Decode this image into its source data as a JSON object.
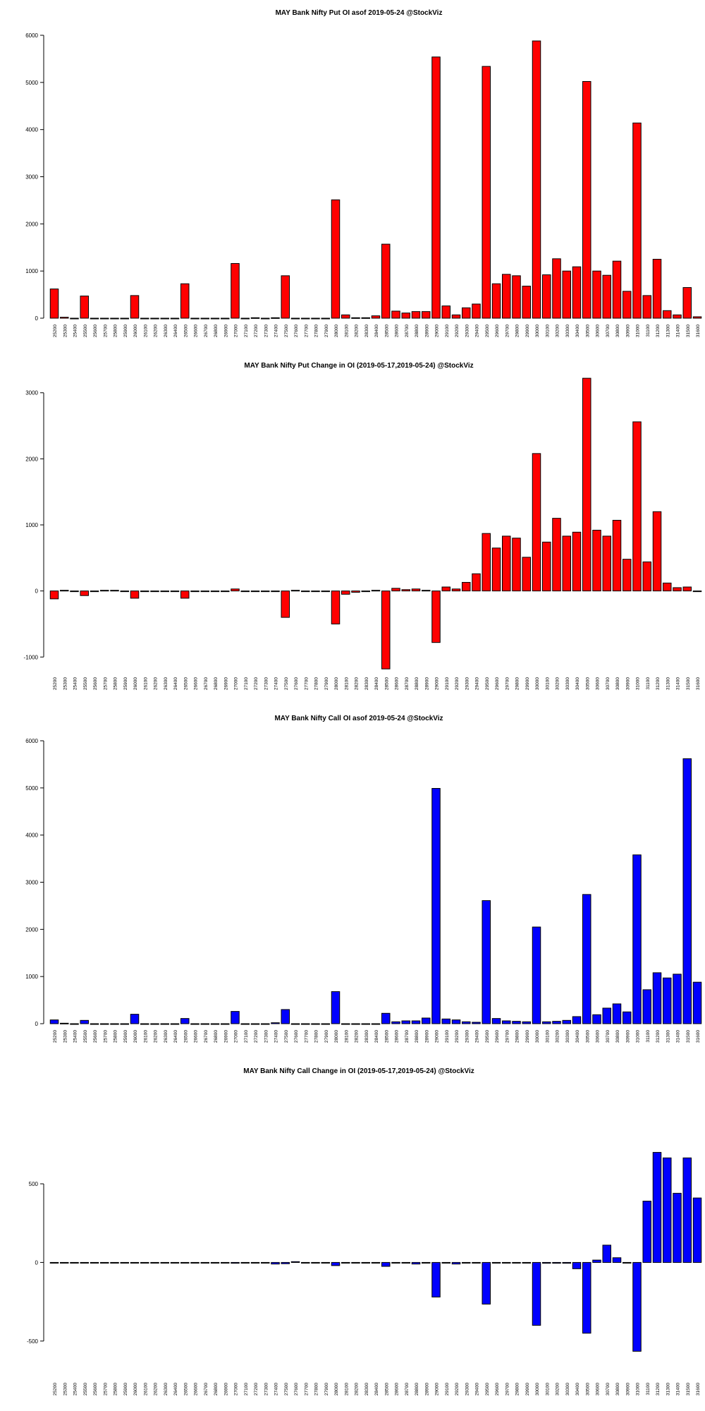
{
  "chart_data": [
    {
      "type": "bar",
      "title": "MAY Bank Nifty Put OI asof 2019-05-24 @StockViz",
      "xlabel": "",
      "ylabel": "",
      "ylim": [
        0,
        6000
      ],
      "yticks": [
        0,
        1000,
        2000,
        3000,
        4000,
        5000,
        6000
      ],
      "bar_color": "#ff0000",
      "categories": [
        "25200",
        "25300",
        "25400",
        "25500",
        "25600",
        "25700",
        "25800",
        "25900",
        "26000",
        "26100",
        "26200",
        "26300",
        "26400",
        "26500",
        "26600",
        "26700",
        "26800",
        "26900",
        "27000",
        "27100",
        "27200",
        "27300",
        "27400",
        "27500",
        "27600",
        "27700",
        "27800",
        "27900",
        "28000",
        "28100",
        "28200",
        "28300",
        "28400",
        "28500",
        "28600",
        "28700",
        "28800",
        "28900",
        "29000",
        "29100",
        "29200",
        "29300",
        "29400",
        "29500",
        "29600",
        "29700",
        "29800",
        "29900",
        "30000",
        "30100",
        "30200",
        "30300",
        "30400",
        "30500",
        "30600",
        "30700",
        "30800",
        "30900",
        "31000",
        "31100",
        "31200",
        "31300",
        "31400",
        "31500",
        "31600"
      ],
      "tick_labels": [
        "25200",
        "25300",
        "25400",
        "25500",
        "25600",
        "25700",
        "25800",
        "25900",
        "26000",
        "26100",
        "26200",
        "26300",
        "26400",
        "26500",
        "26600",
        "26700",
        "26800",
        "26900",
        "27000",
        "27100",
        "27200",
        "27300",
        "27400",
        "27500",
        "27600",
        "27700",
        "27800",
        "27900",
        "28000",
        "28100",
        "28200",
        "28300",
        "28400",
        "28500",
        "28600",
        "28700",
        "28800",
        "28900",
        "29000",
        "29100",
        "29200",
        "29300",
        "29400",
        "29500",
        "29600",
        "29700",
        "29800",
        "29900",
        "30000",
        "30100",
        "30200",
        "30300",
        "30400",
        "30500",
        "30600",
        "30700",
        "30800",
        "30900",
        "31000",
        "31100",
        "31200",
        "31300",
        "31400",
        "31500",
        "31600"
      ],
      "values": [
        620,
        20,
        0,
        470,
        0,
        0,
        0,
        0,
        480,
        0,
        0,
        0,
        0,
        730,
        0,
        0,
        0,
        0,
        1160,
        0,
        10,
        0,
        10,
        900,
        0,
        0,
        0,
        0,
        2510,
        70,
        10,
        10,
        50,
        1570,
        150,
        110,
        140,
        140,
        5540,
        260,
        70,
        220,
        300,
        5340,
        730,
        930,
        900,
        680,
        5880,
        920,
        1260,
        1000,
        1090,
        5020,
        1000,
        910,
        1210,
        570,
        4140,
        480,
        1250,
        160,
        70,
        650,
        30
      ]
    },
    {
      "type": "bar",
      "title": "MAY Bank Nifty Put Change in OI (2019-05-17,2019-05-24) @StockViz",
      "xlabel": "",
      "ylabel": "",
      "ylim": [
        -1200,
        3200
      ],
      "yticks": [
        -1000,
        0,
        1000,
        2000,
        3000
      ],
      "bar_color": "#ff0000",
      "categories": [
        "25200",
        "25300",
        "25400",
        "25500",
        "25600",
        "25700",
        "25800",
        "25900",
        "26000",
        "26100",
        "26200",
        "26300",
        "26400",
        "26500",
        "26600",
        "26700",
        "26800",
        "26900",
        "27000",
        "27100",
        "27200",
        "27300",
        "27400",
        "27500",
        "27600",
        "27700",
        "27800",
        "27900",
        "28000",
        "28100",
        "28200",
        "28300",
        "28400",
        "28500",
        "28600",
        "28700",
        "28800",
        "28900",
        "29000",
        "29100",
        "29200",
        "29300",
        "29400",
        "29500",
        "29600",
        "29700",
        "29800",
        "29900",
        "30000",
        "30100",
        "30200",
        "30300",
        "30400",
        "30500",
        "30600",
        "30700",
        "30800",
        "30900",
        "31000",
        "31100",
        "31200",
        "31300",
        "31400",
        "31500",
        "31600"
      ],
      "tick_labels": [
        "25200",
        "25300",
        "25400",
        "25500",
        "25600",
        "25700",
        "25800",
        "25900",
        "26000",
        "26100",
        "26200",
        "26300",
        "26400",
        "26500",
        "26600",
        "26700",
        "26800",
        "26900",
        "27000",
        "27100",
        "27200",
        "27300",
        "27400",
        "27500",
        "27600",
        "27700",
        "27800",
        "27900",
        "28000",
        "28100",
        "28200",
        "28300",
        "28400",
        "28500",
        "28600",
        "28700",
        "28800",
        "28900",
        "29000",
        "29100",
        "29200",
        "29300",
        "29400",
        "29500",
        "29600",
        "29700",
        "29800",
        "29900",
        "30000",
        "30100",
        "30200",
        "30300",
        "30400",
        "30500",
        "30600",
        "30700",
        "30800",
        "30900",
        "31000",
        "31100",
        "31200",
        "31300",
        "31400",
        "31500",
        "31600"
      ],
      "values": [
        -120,
        10,
        0,
        -70,
        0,
        10,
        10,
        0,
        -110,
        0,
        0,
        0,
        0,
        -110,
        0,
        0,
        0,
        0,
        30,
        0,
        0,
        0,
        0,
        -400,
        10,
        0,
        0,
        0,
        -500,
        -50,
        -20,
        -10,
        10,
        -1180,
        40,
        20,
        30,
        10,
        -780,
        60,
        30,
        130,
        260,
        870,
        650,
        830,
        800,
        510,
        2080,
        740,
        1100,
        830,
        890,
        3220,
        920,
        830,
        1070,
        480,
        2560,
        440,
        1200,
        120,
        50,
        60,
        0
      ]
    },
    {
      "type": "bar",
      "title": "MAY Bank Nifty Call OI asof 2019-05-24 @StockViz",
      "xlabel": "",
      "ylabel": "",
      "ylim": [
        0,
        6000
      ],
      "yticks": [
        0,
        1000,
        2000,
        3000,
        4000,
        5000,
        6000
      ],
      "bar_color": "#0000ff",
      "categories": [
        "25200",
        "25300",
        "25400",
        "25500",
        "25600",
        "25700",
        "25800",
        "25900",
        "26000",
        "26100",
        "26200",
        "26300",
        "26400",
        "26500",
        "26600",
        "26700",
        "26800",
        "26900",
        "27000",
        "27100",
        "27200",
        "27300",
        "27400",
        "27500",
        "27600",
        "27700",
        "27800",
        "27900",
        "28000",
        "28100",
        "28200",
        "28300",
        "28400",
        "28500",
        "28600",
        "28700",
        "28800",
        "28900",
        "29000",
        "29100",
        "29200",
        "29300",
        "29400",
        "29500",
        "29600",
        "29700",
        "29800",
        "29900",
        "30000",
        "30100",
        "30200",
        "30300",
        "30400",
        "30500",
        "30600",
        "30700",
        "30800",
        "30900",
        "31000",
        "31100",
        "31200",
        "31300",
        "31400",
        "31500",
        "31600"
      ],
      "tick_labels": [
        "25200",
        "25300",
        "25400",
        "25500",
        "25600",
        "25700",
        "25800",
        "25900",
        "26000",
        "26100",
        "26200",
        "26300",
        "26400",
        "26500",
        "26600",
        "26700",
        "26800",
        "26900",
        "27000",
        "27100",
        "27200",
        "27300",
        "27400",
        "27500",
        "27600",
        "27700",
        "27800",
        "27900",
        "28000",
        "28100",
        "28200",
        "28300",
        "28400",
        "28500",
        "28600",
        "28700",
        "28800",
        "28900",
        "29000",
        "29100",
        "29200",
        "29300",
        "29400",
        "29500",
        "29600",
        "29700",
        "29800",
        "29900",
        "30000",
        "30100",
        "30200",
        "30300",
        "30400",
        "30500",
        "30600",
        "30700",
        "30800",
        "30900",
        "31000",
        "31100",
        "31200",
        "31300",
        "31400",
        "31500",
        "31600"
      ],
      "values": [
        80,
        10,
        0,
        70,
        0,
        0,
        0,
        0,
        200,
        0,
        0,
        0,
        0,
        110,
        0,
        0,
        0,
        0,
        260,
        0,
        0,
        0,
        20,
        300,
        0,
        0,
        0,
        0,
        680,
        0,
        0,
        0,
        0,
        220,
        40,
        60,
        60,
        120,
        4990,
        100,
        80,
        40,
        30,
        2610,
        110,
        60,
        50,
        40,
        2050,
        40,
        50,
        70,
        150,
        2740,
        190,
        330,
        420,
        250,
        3580,
        720,
        1080,
        970,
        1050,
        5620,
        880
      ]
    },
    {
      "type": "bar",
      "title": "MAY Bank Nifty Call Change in OI (2019-05-17,2019-05-24) @StockViz",
      "xlabel": "",
      "ylabel": "",
      "ylim": [
        -550,
        850
      ],
      "yticks": [
        -500,
        0,
        500
      ],
      "bar_color": "#0000ff",
      "categories": [
        "25200",
        "25300",
        "25400",
        "25500",
        "25600",
        "25700",
        "25800",
        "25900",
        "26000",
        "26100",
        "26200",
        "26300",
        "26400",
        "26500",
        "26600",
        "26700",
        "26800",
        "26900",
        "27000",
        "27100",
        "27200",
        "27300",
        "27400",
        "27500",
        "27600",
        "27700",
        "27800",
        "27900",
        "28000",
        "28100",
        "28200",
        "28300",
        "28400",
        "28500",
        "28600",
        "28700",
        "28800",
        "28900",
        "29000",
        "29100",
        "29200",
        "29300",
        "29400",
        "29500",
        "29600",
        "29700",
        "29800",
        "29900",
        "30000",
        "30100",
        "30200",
        "30300",
        "30400",
        "30500",
        "30600",
        "30700",
        "30800",
        "30900",
        "31000",
        "31100",
        "31200",
        "31300",
        "31400",
        "31500",
        "31600"
      ],
      "tick_labels": [
        "25200",
        "25300",
        "25400",
        "25500",
        "25600",
        "25700",
        "25800",
        "25900",
        "26000",
        "26100",
        "26200",
        "26300",
        "26400",
        "26500",
        "26600",
        "26700",
        "26800",
        "26900",
        "27000",
        "27100",
        "27200",
        "27300",
        "27400",
        "27500",
        "27600",
        "27700",
        "27800",
        "27900",
        "28000",
        "28100",
        "28200",
        "28300",
        "28400",
        "28500",
        "28600",
        "28700",
        "28800",
        "28900",
        "29000",
        "29100",
        "29200",
        "29300",
        "29400",
        "29500",
        "29600",
        "29700",
        "29800",
        "29900",
        "30000",
        "30100",
        "30200",
        "30300",
        "30400",
        "30500",
        "30600",
        "30700",
        "30800",
        "30900",
        "31000",
        "31100",
        "31200",
        "31300",
        "31400",
        "31500",
        "31600"
      ],
      "values": [
        0,
        0,
        0,
        0,
        0,
        0,
        0,
        0,
        0,
        0,
        0,
        0,
        0,
        0,
        0,
        0,
        0,
        0,
        -5,
        0,
        0,
        0,
        -10,
        -8,
        5,
        0,
        0,
        0,
        -20,
        0,
        0,
        0,
        0,
        -25,
        0,
        0,
        -10,
        0,
        -220,
        0,
        -10,
        0,
        0,
        -265,
        0,
        0,
        0,
        0,
        -400,
        -5,
        -5,
        -5,
        -40,
        -450,
        15,
        110,
        30,
        0,
        -565,
        390,
        700,
        665,
        440,
        665,
        410
      ]
    }
  ]
}
